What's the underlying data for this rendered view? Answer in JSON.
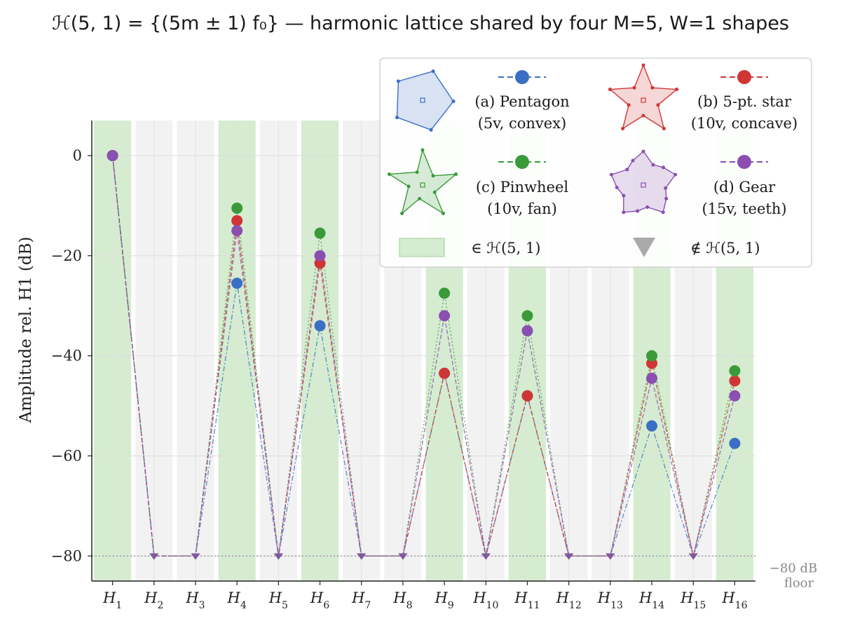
{
  "title": "ℋ(5, 1) = {(5m ± 1) f₀} — harmonic lattice shared by four M=5, W=1 shapes",
  "chart_data": {
    "type": "line",
    "title": "ℋ(5, 1) = {(5m ± 1) f₀} — harmonic lattice shared by four M=5, W=1 shapes",
    "xlabel": "",
    "ylabel": "Amplitude rel. H1  (dB)",
    "ylim": [
      -85,
      7
    ],
    "yticks": [
      0,
      -20,
      -40,
      -60,
      -80
    ],
    "ytick_labels": [
      "0",
      "−20",
      "−40",
      "−60",
      "−80"
    ],
    "categories": [
      "H1",
      "H2",
      "H3",
      "H4",
      "H5",
      "H6",
      "H7",
      "H8",
      "H9",
      "H10",
      "H11",
      "H12",
      "H13",
      "H14",
      "H15",
      "H16"
    ],
    "tick_labels": [
      {
        "base": "H",
        "sub": "1"
      },
      {
        "base": "H",
        "sub": "2"
      },
      {
        "base": "H",
        "sub": "3"
      },
      {
        "base": "H",
        "sub": "4"
      },
      {
        "base": "H",
        "sub": "5"
      },
      {
        "base": "H",
        "sub": "6"
      },
      {
        "base": "H",
        "sub": "7"
      },
      {
        "base": "H",
        "sub": "8"
      },
      {
        "base": "H",
        "sub": "9"
      },
      {
        "base": "H",
        "sub": "10"
      },
      {
        "base": "H",
        "sub": "11"
      },
      {
        "base": "H",
        "sub": "12"
      },
      {
        "base": "H",
        "sub": "13"
      },
      {
        "base": "H",
        "sub": "14"
      },
      {
        "base": "H",
        "sub": "15"
      },
      {
        "base": "H",
        "sub": "16"
      }
    ],
    "in_lattice": [
      true,
      false,
      false,
      true,
      false,
      true,
      false,
      false,
      true,
      false,
      true,
      false,
      false,
      true,
      false,
      true
    ],
    "floor_db": -80,
    "floor_label": [
      "−80 dB",
      "floor"
    ],
    "grid": true,
    "legend_position": "top-right",
    "series": [
      {
        "name": "(a) Pentagon",
        "sub": "(5v, convex)",
        "shape": "pentagon",
        "color": "#3a6fc4",
        "line_style": "dashdot",
        "values": [
          0,
          -80,
          -80,
          -25.5,
          -80,
          -34,
          -80,
          -80,
          -43.5,
          -80,
          -48,
          -80,
          -80,
          -54,
          -80,
          -57.5
        ]
      },
      {
        "name": "(b) 5-pt. star",
        "sub": "(10v, concave)",
        "shape": "star",
        "color": "#d03535",
        "line_style": "dashed",
        "values": [
          0,
          -80,
          -80,
          -13,
          -80,
          -21.5,
          -80,
          -80,
          -43.5,
          -80,
          -48,
          -80,
          -80,
          -41.5,
          -80,
          -45
        ]
      },
      {
        "name": "(c) Pinwheel",
        "sub": "(10v, fan)",
        "shape": "pinwheel",
        "color": "#3a9a3a",
        "line_style": "dotted",
        "values": [
          0,
          -80,
          -80,
          -10.5,
          -80,
          -15.5,
          -80,
          -80,
          -27.5,
          -80,
          -32,
          -80,
          -80,
          -40,
          -80,
          -43
        ]
      },
      {
        "name": "(d) Gear",
        "sub": "(15v, teeth)",
        "shape": "gear",
        "color": "#8a4fb0",
        "line_style": "dashed",
        "values": [
          0,
          -80,
          -80,
          -15,
          -80,
          -20,
          -80,
          -80,
          -32,
          -80,
          -35,
          -80,
          -80,
          -44.5,
          -80,
          -48
        ]
      }
    ],
    "legend_extra": {
      "in_label": "∈ ℋ(5, 1)",
      "out_label": "∉ ℋ(5, 1)",
      "in_color": "#d5ecd0",
      "out_color": "#aaaaaa"
    }
  }
}
